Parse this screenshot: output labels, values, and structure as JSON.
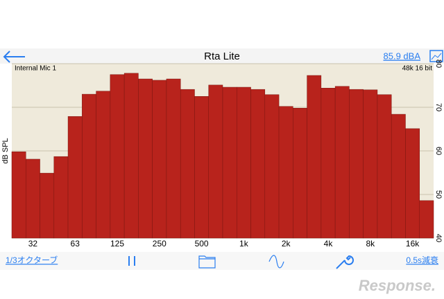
{
  "nav": {
    "title": "Rta Lite",
    "level": "85.9 dBA"
  },
  "chart_data": {
    "type": "bar",
    "annotations": [
      "Internal Mic 1",
      "48k 16 bit"
    ],
    "ylabel": "dB SPL",
    "categories": [
      null,
      "32",
      null,
      null,
      "63",
      null,
      null,
      "125",
      null,
      null,
      "250",
      null,
      null,
      "500",
      null,
      null,
      "1k",
      null,
      null,
      "2k",
      null,
      null,
      "4k",
      null,
      null,
      "8k",
      null,
      null,
      "16k",
      null
    ],
    "values": [
      59.8,
      58.1,
      54.9,
      58.7,
      67.9,
      73.0,
      73.7,
      77.5,
      77.8,
      76.5,
      76.2,
      76.5,
      74.1,
      72.5,
      75.1,
      74.6,
      74.6,
      74.1,
      72.9,
      70.2,
      69.8,
      77.3,
      74.4,
      74.8,
      74.1,
      74.0,
      72.9,
      68.4,
      65.1,
      48.6
    ],
    "color": "#b8231c",
    "ylim": [
      40,
      80
    ],
    "yticks": [
      40,
      50,
      60,
      70,
      80
    ],
    "grid": true
  },
  "toolbar": {
    "left": "1/3オクターブ",
    "right": "0.5s減衰"
  },
  "watermark": "Response."
}
